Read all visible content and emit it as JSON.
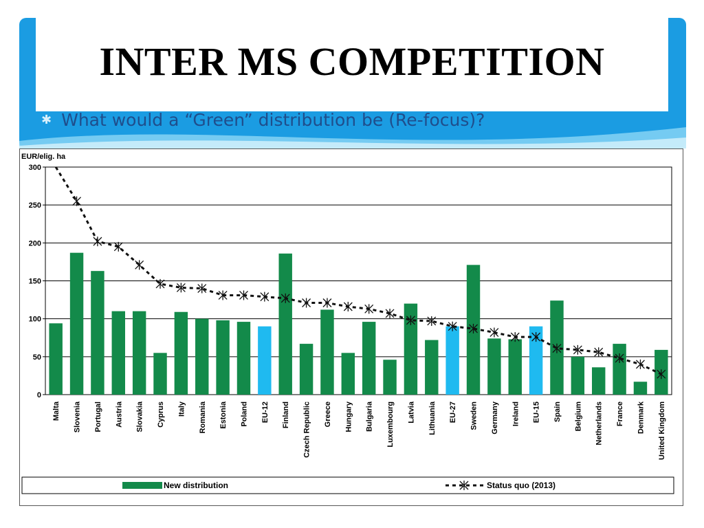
{
  "slide": {
    "title": "INTER MS COMPETITION",
    "bullet": "What would a “Green” distribution be (Re-focus)?",
    "bullet_icon": "star-bullet-icon",
    "colors": {
      "accent": "#1b9ce2",
      "title": "#000000",
      "bullet_text": "#1f4e8c"
    }
  },
  "chart_data": {
    "type": "bar",
    "title": "",
    "ylabel": "EUR/elig. ha",
    "xlabel": "",
    "ylim": [
      0,
      300
    ],
    "yticks": [
      0,
      50,
      100,
      150,
      200,
      250,
      300
    ],
    "grid": true,
    "legend_position": "bottom",
    "categories": [
      "Malta",
      "Slovenia",
      "Portugal",
      "Austria",
      "Slovakia",
      "Cyprus",
      "Italy",
      "Romania",
      "Estonia",
      "Poland",
      "EU-12",
      "Finland",
      "Czech Republic",
      "Greece",
      "Hungary",
      "Bulgaria",
      "Luxembourg",
      "Latvia",
      "Lithuania",
      "EU-27",
      "Sweden",
      "Germany",
      "Ireland",
      "EU-15",
      "Spain",
      "Belgium",
      "Netherlands",
      "France",
      "Denmark",
      "United Kingdom"
    ],
    "highlight_categories": [
      "EU-12",
      "EU-27",
      "EU-15"
    ],
    "series": [
      {
        "name": "New distribution",
        "kind": "bar",
        "color": "#138a4a",
        "highlight_color": "#1fbaf0",
        "values": [
          94,
          187,
          163,
          110,
          110,
          55,
          109,
          100,
          98,
          96,
          90,
          186,
          67,
          112,
          55,
          96,
          46,
          120,
          72,
          90,
          171,
          74,
          73,
          90,
          124,
          50,
          36,
          67,
          17,
          59
        ]
      },
      {
        "name": "Status quo (2013)",
        "kind": "line",
        "color": "#111111",
        "values": [
          300,
          255,
          202,
          195,
          171,
          146,
          141,
          140,
          131,
          131,
          129,
          127,
          121,
          121,
          116,
          113,
          107,
          98,
          97,
          90,
          87,
          82,
          76,
          76,
          61,
          59,
          56,
          48,
          40,
          27
        ]
      }
    ]
  }
}
